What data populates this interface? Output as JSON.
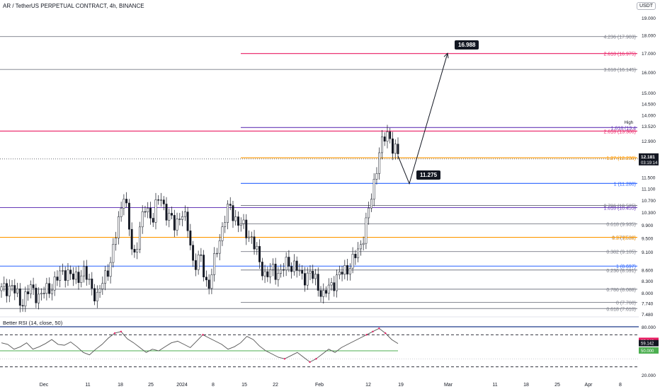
{
  "header": {
    "title": "AR / TetherUS PERPETUAL CONTRACT, 4h, BINANCE",
    "currency": "USDT"
  },
  "price_badge": {
    "value": "12.181",
    "countdown": "03:19:14"
  },
  "high_label": "High",
  "high_value": "13.520",
  "callouts": {
    "target": "16.988",
    "pivot": "11.275"
  },
  "rsi_label": "Better RSI (14, close, 50)",
  "rsi_values": {
    "current": "59.142",
    "prev": "57.343",
    "mid": "50.000"
  },
  "colors": {
    "candle": "#131722",
    "fib_gray": "#787b86",
    "fib_red": "#e91e63",
    "fib_orange": "#ff9800",
    "fib_blue": "#2962ff",
    "fib_purple": "#673ab7",
    "rsi_green": "#4caf50",
    "rsi_red": "#e91e63",
    "rsi_band": "#1e3a8a"
  },
  "chart_data": {
    "type": "candlestick",
    "ylim": [
      7.48,
      19.0
    ],
    "log_scale": true,
    "yticks": [
      "19.000",
      "18.000",
      "17.000",
      "16.000",
      "15.000",
      "14.500",
      "14.000",
      "13.520",
      "12.900",
      "12.181",
      "11.500",
      "11.100",
      "10.700",
      "10.300",
      "9.900",
      "9.500",
      "9.100",
      "8.600",
      "8.300",
      "8.000",
      "7.740",
      "7.480"
    ],
    "xticks": [
      "Dec",
      "11",
      "18",
      "25",
      "2024",
      "8",
      "15",
      "22",
      "Feb",
      "12",
      "19",
      "Mar",
      "11",
      "18",
      "25",
      "Apr",
      "8"
    ],
    "fib_levels": [
      {
        "label": "4.236 (17.903)",
        "price": 17.903,
        "color": "gray",
        "start": "full"
      },
      {
        "label": "2.618 (16.975)",
        "price": 16.975,
        "color": "red",
        "start": "mid"
      },
      {
        "label": "3.618 (16.145)",
        "price": 16.145,
        "color": "gray",
        "start": "full"
      },
      {
        "label": "1.618 (13.4",
        "price": 13.45,
        "color": "purple",
        "start": "mid"
      },
      {
        "label": "2.618 (13.300)",
        "price": 13.3,
        "color": "red",
        "start": "full"
      },
      {
        "label": "1.27 (12.230)",
        "price": 12.23,
        "color": "orange",
        "start": "mid"
      },
      {
        "label": "1 (11.280)",
        "price": 11.28,
        "color": "blue",
        "start": "mid"
      },
      {
        "label": "0.786 (10.525)",
        "price": 10.525,
        "color": "gray",
        "start": "mid"
      },
      {
        "label": "1.618 (10.455)",
        "price": 10.455,
        "color": "purple",
        "start": "full"
      },
      {
        "label": "0.618 (9.935)",
        "price": 9.935,
        "color": "gray",
        "start": "mid"
      },
      {
        "label": "0.5 (9.520)",
        "price": 9.52,
        "color": "gray",
        "start": "mid"
      },
      {
        "label": "1.27 (9.52)",
        "price": 9.52,
        "color": "orange",
        "start": "full"
      },
      {
        "label": "0.382 (9.105)",
        "price": 9.105,
        "color": "gray",
        "start": "mid"
      },
      {
        "label": "1 (8.697)",
        "price": 8.697,
        "color": "blue",
        "start": "full"
      },
      {
        "label": "0.236 (8.591)",
        "price": 8.591,
        "color": "gray",
        "start": "mid"
      },
      {
        "label": "0.786 (8.088)",
        "price": 8.088,
        "color": "gray",
        "start": "full"
      },
      {
        "label": "0 (7.760)",
        "price": 7.76,
        "color": "gray",
        "start": "mid"
      },
      {
        "label": "0.618 (7.610)",
        "price": 7.61,
        "color": "gray",
        "start": "full"
      }
    ],
    "close_path": [
      {
        "t": 0,
        "p": 8.05
      },
      {
        "t": 4,
        "p": 8.2
      },
      {
        "t": 8,
        "p": 7.75
      },
      {
        "t": 12,
        "p": 8.1
      },
      {
        "t": 16,
        "p": 7.9
      },
      {
        "t": 22,
        "p": 8.25
      },
      {
        "t": 26,
        "p": 8.6
      },
      {
        "t": 30,
        "p": 8.35
      },
      {
        "t": 34,
        "p": 8.55
      },
      {
        "t": 38,
        "p": 8.1
      },
      {
        "t": 40,
        "p": 7.85
      },
      {
        "t": 43,
        "p": 8.45
      },
      {
        "t": 46,
        "p": 8.9
      },
      {
        "t": 49,
        "p": 10.2
      },
      {
        "t": 51,
        "p": 11.0
      },
      {
        "t": 53,
        "p": 9.8
      },
      {
        "t": 55,
        "p": 8.9
      },
      {
        "t": 57,
        "p": 9.6
      },
      {
        "t": 60,
        "p": 10.5
      },
      {
        "t": 63,
        "p": 10.1
      },
      {
        "t": 66,
        "p": 10.9
      },
      {
        "t": 69,
        "p": 10.2
      },
      {
        "t": 72,
        "p": 9.9
      },
      {
        "t": 75,
        "p": 10.3
      },
      {
        "t": 78,
        "p": 9.7
      },
      {
        "t": 80,
        "p": 8.7
      },
      {
        "t": 83,
        "p": 8.9
      },
      {
        "t": 86,
        "p": 8.1
      },
      {
        "t": 88,
        "p": 8.6
      },
      {
        "t": 90,
        "p": 9.3
      },
      {
        "t": 93,
        "p": 10.1
      },
      {
        "t": 95,
        "p": 10.5
      },
      {
        "t": 98,
        "p": 10.0
      },
      {
        "t": 101,
        "p": 9.8
      },
      {
        "t": 104,
        "p": 9.5
      },
      {
        "t": 107,
        "p": 8.9
      },
      {
        "t": 110,
        "p": 8.4
      },
      {
        "t": 113,
        "p": 8.6
      },
      {
        "t": 116,
        "p": 8.5
      },
      {
        "t": 119,
        "p": 8.8
      },
      {
        "t": 122,
        "p": 8.7
      },
      {
        "t": 125,
        "p": 8.4
      },
      {
        "t": 128,
        "p": 8.5
      },
      {
        "t": 131,
        "p": 8.3
      },
      {
        "t": 134,
        "p": 7.9
      },
      {
        "t": 137,
        "p": 8.2
      },
      {
        "t": 140,
        "p": 8.4
      },
      {
        "t": 143,
        "p": 8.6
      },
      {
        "t": 146,
        "p": 8.8
      },
      {
        "t": 149,
        "p": 9.2
      },
      {
        "t": 151,
        "p": 9.7
      },
      {
        "t": 153,
        "p": 10.4
      },
      {
        "t": 155,
        "p": 11.3
      },
      {
        "t": 157,
        "p": 12.4
      },
      {
        "t": 159,
        "p": 12.9
      },
      {
        "t": 161,
        "p": 13.3
      },
      {
        "t": 163,
        "p": 12.6
      },
      {
        "t": 165,
        "p": 12.3
      }
    ],
    "projection": [
      {
        "x": "19",
        "price": 11.275
      },
      {
        "x": "Mar",
        "price": 16.988
      }
    ],
    "rsi": {
      "ylim": [
        20,
        80
      ],
      "ticks": [
        "80.000",
        "20.000"
      ],
      "bands": [
        80,
        70,
        50,
        40,
        30
      ],
      "values": [
        60,
        58,
        52,
        55,
        60,
        52,
        55,
        59,
        64,
        58,
        57,
        61,
        55,
        48,
        45,
        52,
        58,
        66,
        72,
        74,
        65,
        60,
        54,
        48,
        52,
        50,
        55,
        60,
        62,
        58,
        54,
        62,
        70,
        66,
        62,
        58,
        52,
        55,
        60,
        68,
        64,
        56,
        50,
        46,
        42,
        40,
        44,
        48,
        42,
        36,
        40,
        46,
        52,
        48,
        54,
        58,
        62,
        66,
        70,
        74,
        78,
        72,
        64,
        59
      ]
    }
  }
}
